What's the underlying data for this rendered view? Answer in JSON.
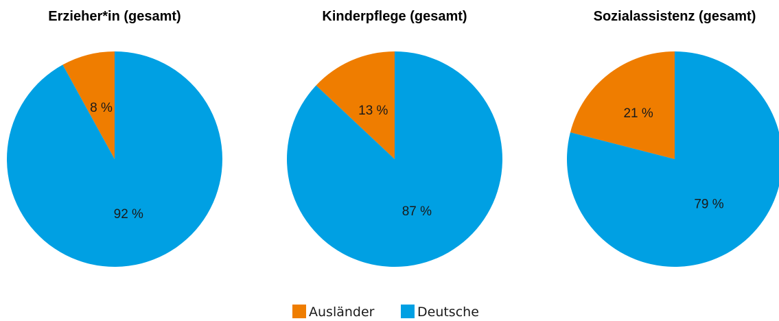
{
  "colors": {
    "Ausländer": "#ef7d00",
    "Deutsche": "#00a0e3"
  },
  "legend": {
    "items": [
      "Ausländer",
      "Deutsche"
    ]
  },
  "chart_data": [
    {
      "type": "pie",
      "title": "Erzieher*in (gesamt)",
      "categories": [
        "Ausländer",
        "Deutsche"
      ],
      "values": [
        8,
        92
      ],
      "labels": [
        "8 %",
        "92 %"
      ]
    },
    {
      "type": "pie",
      "title": "Kinderpflege (gesamt)",
      "categories": [
        "Ausländer",
        "Deutsche"
      ],
      "values": [
        13,
        87
      ],
      "labels": [
        "13 %",
        "87 %"
      ]
    },
    {
      "type": "pie",
      "title": "Sozialassistenz (gesamt)",
      "categories": [
        "Ausländer",
        "Deutsche"
      ],
      "values": [
        21,
        79
      ],
      "labels": [
        "21 %",
        "79 %"
      ]
    }
  ]
}
